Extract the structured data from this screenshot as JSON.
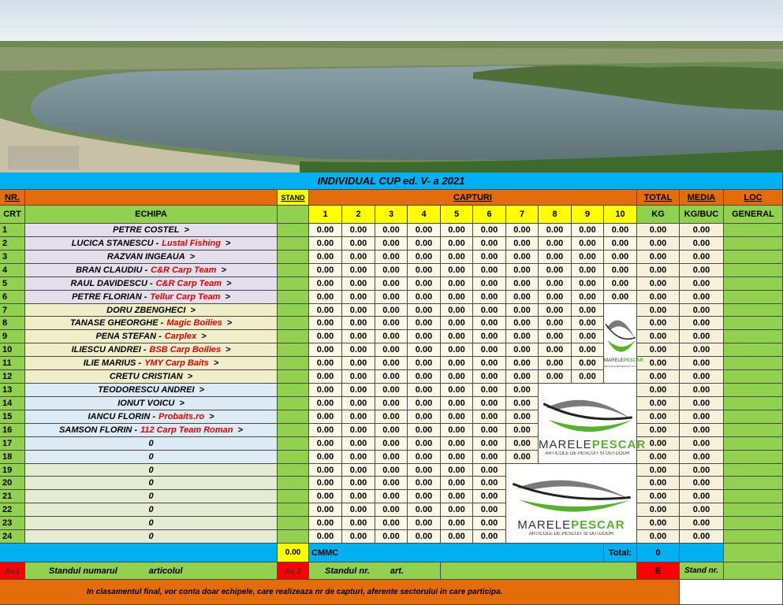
{
  "title": "INDIVIDUAL  CUP ed. V- a  2021",
  "header": {
    "nr": "NR.",
    "stand": "STAND",
    "capturi": "CAPTURI",
    "total": "TOTAL",
    "media": "MEDIA",
    "loc": "LOC",
    "crt": "CRT",
    "echipa": "ECHIPA",
    "capture_numbers": [
      "1",
      "2",
      "3",
      "4",
      "5",
      "6",
      "7",
      "8",
      "9",
      "10"
    ],
    "kg": "KG",
    "kg_buc": "KG/BUC",
    "general": "GENERAL"
  },
  "rows": [
    {
      "nr": "1",
      "name": "PETRE  COSTEL",
      "arrow": ">",
      "captures": [
        "0.00",
        "0.00",
        "0.00",
        "0.00",
        "0.00",
        "0.00",
        "0.00",
        "0.00",
        "0.00",
        "0.00"
      ],
      "total": "0.00",
      "media": "0.00"
    },
    {
      "nr": "2",
      "name": "LUCICA STANESCU -",
      "team": "Lustal Fishing",
      "arrow": ">",
      "captures": [
        "0.00",
        "0.00",
        "0.00",
        "0.00",
        "0.00",
        "0.00",
        "0.00",
        "0.00",
        "0.00",
        "0.00"
      ],
      "total": "0.00",
      "media": "0.00"
    },
    {
      "nr": "3",
      "name": "RAZVAN  INGEAUA",
      "arrow": ">",
      "captures": [
        "0.00",
        "0.00",
        "0.00",
        "0.00",
        "0.00",
        "0.00",
        "0.00",
        "0.00",
        "0.00",
        "0.00"
      ],
      "total": "0.00",
      "media": "0.00"
    },
    {
      "nr": "4",
      "name": "BRAN CLAUDIU -",
      "team": "C&R Carp Team",
      "arrow": ">",
      "captures": [
        "0.00",
        "0.00",
        "0.00",
        "0.00",
        "0.00",
        "0.00",
        "0.00",
        "0.00",
        "0.00",
        "0.00"
      ],
      "total": "0.00",
      "media": "0.00"
    },
    {
      "nr": "5",
      "name": "RAUL  DAVIDESCU -",
      "team": "C&R Carp Team",
      "arrow": ">",
      "captures": [
        "0.00",
        "0.00",
        "0.00",
        "0.00",
        "0.00",
        "0.00",
        "0.00",
        "0.00",
        "0.00",
        "0.00"
      ],
      "total": "0.00",
      "media": "0.00"
    },
    {
      "nr": "6",
      "name": "PETRE  FLORIAN -",
      "team": "Tellur Carp Team",
      "arrow": ">",
      "captures": [
        "0.00",
        "0.00",
        "0.00",
        "0.00",
        "0.00",
        "0.00",
        "0.00",
        "0.00",
        "0.00",
        "0.00"
      ],
      "total": "0.00",
      "media": "0.00"
    },
    {
      "nr": "7",
      "name": "DORU  ZBENGHECI",
      "arrow": ">",
      "captures": [
        "0.00",
        "0.00",
        "0.00",
        "0.00",
        "0.00",
        "0.00",
        "0.00",
        "0.00",
        "0.00"
      ],
      "total": "0.00",
      "media": "0.00"
    },
    {
      "nr": "8",
      "name": "TANASE GHEORGHE -",
      "team": "Magic Boilies",
      "arrow": ">",
      "captures": [
        "0.00",
        "0.00",
        "0.00",
        "0.00",
        "0.00",
        "0.00",
        "0.00",
        "0.00",
        "0.00"
      ],
      "total": "0.00",
      "media": "0.00"
    },
    {
      "nr": "9",
      "name": "PENA  STEFAN -",
      "team": "Carplex",
      "arrow": ">",
      "captures": [
        "0.00",
        "0.00",
        "0.00",
        "0.00",
        "0.00",
        "0.00",
        "0.00",
        "0.00",
        "0.00"
      ],
      "total": "0.00",
      "media": "0.00"
    },
    {
      "nr": "10",
      "name": "ILIESCU  ANDREI -",
      "team": "BSB Carp Boilies",
      "arrow": ">",
      "captures": [
        "0.00",
        "0.00",
        "0.00",
        "0.00",
        "0.00",
        "0.00",
        "0.00",
        "0.00",
        "0.00"
      ],
      "total": "0.00",
      "media": "0.00"
    },
    {
      "nr": "11",
      "name": "ILIE  MARIUS -",
      "team": "YMY Carp Baits",
      "arrow": ">",
      "captures": [
        "0.00",
        "0.00",
        "0.00",
        "0.00",
        "0.00",
        "0.00",
        "0.00",
        "0.00",
        "0.00"
      ],
      "total": "0.00",
      "media": "0.00"
    },
    {
      "nr": "12",
      "name": "CRETU  CRISTIAN",
      "arrow": ">",
      "captures": [
        "0.00",
        "0.00",
        "0.00",
        "0.00",
        "0.00",
        "0.00",
        "0.00",
        "0.00",
        "0.00"
      ],
      "total": "0.00",
      "media": "0.00"
    },
    {
      "nr": "13",
      "name": "TEODORESCU  ANDREI",
      "arrow": ">",
      "captures": [
        "0.00",
        "0.00",
        "0.00",
        "0.00",
        "0.00",
        "0.00",
        "0.00"
      ],
      "total": "0.00",
      "media": "0.00"
    },
    {
      "nr": "14",
      "name": "IONUT  VOICU",
      "arrow": ">",
      "captures": [
        "0.00",
        "0.00",
        "0.00",
        "0.00",
        "0.00",
        "0.00",
        "0.00"
      ],
      "total": "0.00",
      "media": "0.00"
    },
    {
      "nr": "15",
      "name": "IANCU  FLORIN -",
      "team": "Probaits.ro",
      "arrow": ">",
      "captures": [
        "0.00",
        "0.00",
        "0.00",
        "0.00",
        "0.00",
        "0.00",
        "0.00"
      ],
      "total": "0.00",
      "media": "0.00"
    },
    {
      "nr": "16",
      "name": "SAMSON FLORIN -",
      "team": "112 Carp Team Roman",
      "arrow": ">",
      "captures": [
        "0.00",
        "0.00",
        "0.00",
        "0.00",
        "0.00",
        "0.00",
        "0.00"
      ],
      "total": "0.00",
      "media": "0.00"
    },
    {
      "nr": "17",
      "name": "0",
      "captures": [
        "0.00",
        "0.00",
        "0.00",
        "0.00",
        "0.00",
        "0.00",
        "0.00"
      ],
      "total": "0.00",
      "media": "0.00"
    },
    {
      "nr": "18",
      "name": "0",
      "captures": [
        "0.00",
        "0.00",
        "0.00",
        "0.00",
        "0.00",
        "0.00",
        "0.00"
      ],
      "total": "0.00",
      "media": "0.00"
    },
    {
      "nr": "19",
      "name": "0",
      "captures": [
        "0.00",
        "0.00",
        "0.00",
        "0.00",
        "0.00",
        "0.00"
      ],
      "total": "0.00",
      "media": "0.00"
    },
    {
      "nr": "20",
      "name": "0",
      "captures": [
        "0.00",
        "0.00",
        "0.00",
        "0.00",
        "0.00",
        "0.00"
      ],
      "total": "0.00",
      "media": "0.00"
    },
    {
      "nr": "21",
      "name": "0",
      "captures": [
        "0.00",
        "0.00",
        "0.00",
        "0.00",
        "0.00",
        "0.00"
      ],
      "total": "0.00",
      "media": "0.00"
    },
    {
      "nr": "22",
      "name": "0",
      "captures": [
        "0.00",
        "0.00",
        "0.00",
        "0.00",
        "0.00",
        "0.00"
      ],
      "total": "0.00",
      "media": "0.00"
    },
    {
      "nr": "23",
      "name": "0",
      "captures": [
        "0.00",
        "0.00",
        "0.00",
        "0.00",
        "0.00",
        "0.00"
      ],
      "total": "0.00",
      "media": "0.00"
    },
    {
      "nr": "24",
      "name": "0",
      "captures": [
        "0.00",
        "0.00",
        "0.00",
        "0.00",
        "0.00",
        "0.00"
      ],
      "total": "0.00",
      "media": "0.00"
    }
  ],
  "summary": {
    "stand_total": "0.00",
    "cmmc": "CMMC",
    "total_label": "Total:",
    "total": "0"
  },
  "notes": {
    "av1": "Av.1",
    "av1_text": "Standul numarul",
    "av1_text2": "articolul",
    "av2": "Av. 2",
    "av2_text": "Standul  nr.",
    "av2_text2": "art.",
    "e": "E",
    "stand_nr": "Stand nr."
  },
  "footer": "In clasamentul final, vor conta doar echipele, care realizeaza nr de capturi, aferente sectorului in care participa.",
  "logo": {
    "word1": "MARELE",
    "word2": "PESCAR",
    "tagline": "ARTICOLE DE PESCUIT SI OUTDOOR"
  }
}
